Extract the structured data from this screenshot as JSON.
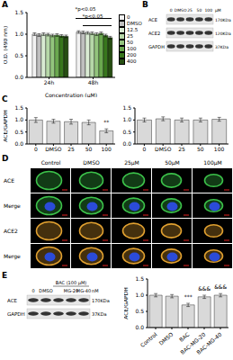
{
  "panel_labels": [
    "A",
    "B",
    "C",
    "D",
    "E"
  ],
  "chart_data": [
    {
      "type": "bar",
      "ylabel": "O.D. (490 nm)",
      "xlabel": "Concentration (μM)",
      "categories": [
        "24h",
        "48h"
      ],
      "series": [
        {
          "name": "0",
          "color": "#f2f2f2",
          "values": [
            1.0,
            1.05
          ],
          "errors": [
            0.03,
            0.03
          ]
        },
        {
          "name": "DMSO",
          "color": "#bfbfbf",
          "values": [
            0.98,
            1.04
          ],
          "errors": [
            0.03,
            0.03
          ]
        },
        {
          "name": "12.5",
          "color": "#d9ead3",
          "values": [
            1.0,
            1.03
          ],
          "errors": [
            0.03,
            0.03
          ]
        },
        {
          "name": "25",
          "color": "#b6d7a8",
          "values": [
            0.99,
            1.02
          ],
          "errors": [
            0.03,
            0.03
          ]
        },
        {
          "name": "50",
          "color": "#93c47d",
          "values": [
            0.97,
            1.0
          ],
          "errors": [
            0.03,
            0.03
          ]
        },
        {
          "name": "100",
          "color": "#6aa84f",
          "values": [
            0.98,
            1.02
          ],
          "errors": [
            0.03,
            0.03
          ]
        },
        {
          "name": "200",
          "color": "#38761d",
          "values": [
            0.96,
            0.97
          ],
          "errors": [
            0.03,
            0.03
          ]
        },
        {
          "name": "400",
          "color": "#274e13",
          "values": [
            0.95,
            0.92
          ],
          "errors": [
            0.03,
            0.03
          ]
        }
      ],
      "ylim": [
        0,
        1.5
      ],
      "yticks": [
        {
          "value": 0,
          "label": "0.0"
        },
        {
          "value": 0.5,
          "label": "0.5"
        },
        {
          "value": 1,
          "label": "1.0"
        },
        {
          "value": 1.5,
          "label": "1.5"
        }
      ],
      "legend": "right",
      "annotations": [
        "*p<0.05",
        "*p<0.05"
      ]
    },
    {
      "type": "bar",
      "ylabel": "ACE/GAPDH",
      "categories": [
        "0",
        "DMSO",
        "25",
        "50",
        "100"
      ],
      "values": [
        1.0,
        0.95,
        0.93,
        0.9,
        0.55
      ],
      "errors": [
        0.1,
        0.08,
        0.1,
        0.1,
        0.08
      ],
      "color": "#d9d9d9",
      "ylim": [
        0,
        1.5
      ],
      "yticks": [
        {
          "value": 0,
          "label": "0.0"
        },
        {
          "value": 0.5,
          "label": "0.5"
        },
        {
          "value": 1,
          "label": "1.0"
        },
        {
          "value": 1.5,
          "label": "1.5"
        }
      ],
      "annotations": [
        null,
        null,
        null,
        null,
        "**"
      ]
    },
    {
      "type": "bar",
      "categories": [
        "0",
        "DMSO",
        "25",
        "50",
        "100"
      ],
      "values": [
        1.0,
        1.05,
        1.0,
        1.0,
        1.03
      ],
      "errors": [
        0.08,
        0.08,
        0.08,
        0.08,
        0.08
      ],
      "color": "#d9d9d9",
      "ylim": [
        0,
        1.5
      ],
      "yticks": [
        {
          "value": 0,
          "label": "0.0"
        },
        {
          "value": 0.5,
          "label": "0.5"
        },
        {
          "value": 1,
          "label": "1.0"
        },
        {
          "value": 1.5,
          "label": "1.5"
        }
      ]
    },
    {
      "type": "bar",
      "ylabel": "ACE/GAPDH",
      "categories": [
        "Control",
        "DMSO",
        "BAC",
        "BAC-MG-20",
        "BAC-MG-40"
      ],
      "values": [
        1.0,
        0.97,
        0.7,
        0.95,
        1.0
      ],
      "errors": [
        0.05,
        0.05,
        0.05,
        0.05,
        0.05
      ],
      "color": "#d9d9d9",
      "ylim": [
        0,
        1.5
      ],
      "yticks": [
        {
          "value": 0,
          "label": "0.0"
        },
        {
          "value": 0.5,
          "label": "0.5"
        },
        {
          "value": 1,
          "label": "1.0"
        },
        {
          "value": 1.5,
          "label": "1.5"
        }
      ],
      "annotations": [
        null,
        null,
        "***",
        "&&&",
        "&&&"
      ]
    }
  ],
  "blots": [
    {
      "lanes": [
        "0",
        "DMSO",
        "25",
        "50",
        "100"
      ],
      "unit": "μM",
      "rows": [
        {
          "name": "ACE",
          "size": "170KDa"
        },
        {
          "name": "ACE2",
          "size": "120KDa"
        },
        {
          "name": "GAPDH",
          "size": "37KDa"
        }
      ]
    },
    {
      "treatment": "BAC (100 μM)",
      "lanes": [
        "0",
        "DMSO",
        null,
        "MG-20",
        "MG-40"
      ],
      "unit": "nM",
      "rows": [
        {
          "name": "ACE",
          "size": "170KDa"
        },
        {
          "name": "GAPDH",
          "size": "37KDa"
        }
      ]
    }
  ],
  "micrographs": {
    "columns": [
      "Control",
      "DMSO",
      "25μM",
      "50μM",
      "100μM"
    ],
    "rows": [
      "ACE",
      "Merge",
      "ACE2",
      "Merge"
    ]
  }
}
